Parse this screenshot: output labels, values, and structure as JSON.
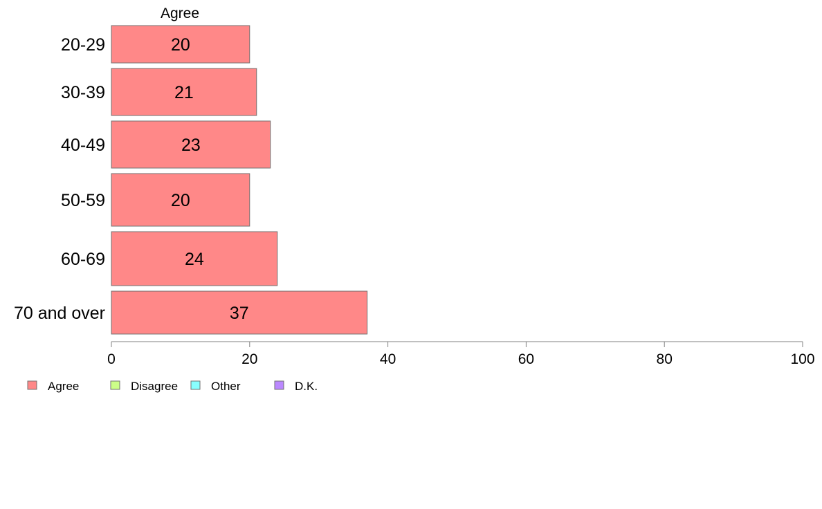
{
  "chart_data": {
    "type": "bar",
    "orientation": "horizontal",
    "series_header": "Agree",
    "categories": [
      "20-29",
      "30-39",
      "40-49",
      "50-59",
      "60-69",
      "70 and over"
    ],
    "series": [
      {
        "name": "Agree",
        "values": [
          20,
          21,
          23,
          20,
          24,
          37
        ],
        "labels": [
          "20",
          "21",
          "23",
          "20",
          "24",
          "37"
        ],
        "color": "#ff8888"
      }
    ],
    "xlim": [
      0,
      100
    ],
    "xticks": [
      0,
      20,
      40,
      60,
      80,
      100
    ],
    "xtick_labels": [
      "0",
      "20",
      "40",
      "60",
      "80",
      "100"
    ],
    "grid": false,
    "legend": {
      "placement": "bottom-left",
      "entries": [
        {
          "label": "Agree",
          "color": "#ff8888"
        },
        {
          "label": "Disagree",
          "color": "#ccff88"
        },
        {
          "label": "Other",
          "color": "#88ffff"
        },
        {
          "label": "D.K.",
          "color": "#bb88ff"
        }
      ]
    }
  }
}
